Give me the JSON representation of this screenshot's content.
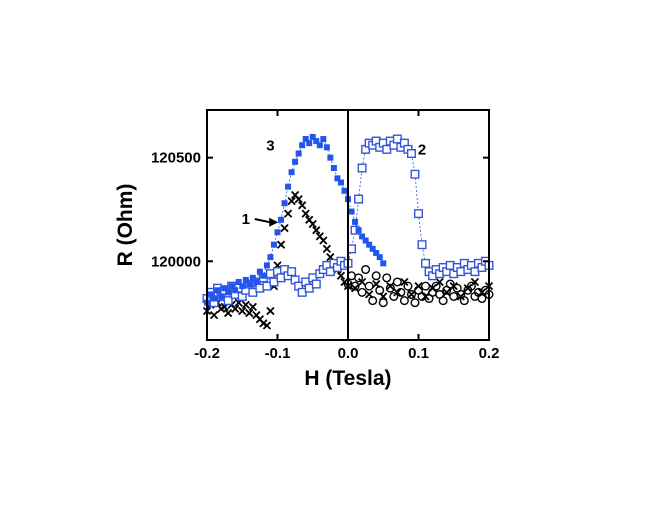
{
  "chart_data": {
    "type": "scatter",
    "xlabel": "H (Tesla)",
    "ylabel": "R (Ohm)",
    "xlim": [
      -0.2,
      0.2
    ],
    "ylim": [
      119620,
      120730
    ],
    "x_ticks": [
      {
        "value": -0.2,
        "label": "-0.2"
      },
      {
        "value": -0.1,
        "label": "-0.1"
      },
      {
        "value": 0.0,
        "label": "0.0"
      },
      {
        "value": 0.1,
        "label": "0.1"
      },
      {
        "value": 0.2,
        "label": "0.2"
      }
    ],
    "y_ticks": [
      {
        "value": 120000,
        "label": "120000"
      },
      {
        "value": 120500,
        "label": "120500"
      }
    ],
    "grid": false,
    "annotations": [
      {
        "text": "1",
        "x": -0.145,
        "y": 120180,
        "arrow_to": [
          -0.099,
          120188
        ]
      },
      {
        "text": "2",
        "x": 0.105,
        "y": 120515
      },
      {
        "text": "3",
        "x": -0.11,
        "y": 120535
      }
    ],
    "series": [
      {
        "id": "s1",
        "marker": "x",
        "color": "#000000",
        "points": [
          [
            -0.2,
            119760
          ],
          [
            -0.195,
            119790
          ],
          [
            -0.19,
            119740
          ],
          [
            -0.185,
            119800
          ],
          [
            -0.18,
            119770
          ],
          [
            -0.175,
            119780
          ],
          [
            -0.17,
            119750
          ],
          [
            -0.165,
            119790
          ],
          [
            -0.16,
            119770
          ],
          [
            -0.155,
            119800
          ],
          [
            -0.15,
            119760
          ],
          [
            -0.145,
            119790
          ],
          [
            -0.14,
            119750
          ],
          [
            -0.135,
            119780
          ],
          [
            -0.13,
            119740
          ],
          [
            -0.125,
            119720
          ],
          [
            -0.12,
            119700
          ],
          [
            -0.115,
            119690
          ],
          [
            -0.11,
            119760
          ],
          [
            -0.105,
            119880
          ],
          [
            -0.1,
            119980
          ],
          [
            -0.095,
            120080
          ],
          [
            -0.09,
            120160
          ],
          [
            -0.085,
            120230
          ],
          [
            -0.08,
            120290
          ],
          [
            -0.075,
            120320
          ],
          [
            -0.07,
            120300
          ],
          [
            -0.065,
            120270
          ],
          [
            -0.06,
            120230
          ],
          [
            -0.055,
            120200
          ],
          [
            -0.05,
            120180
          ],
          [
            -0.045,
            120150
          ],
          [
            -0.04,
            120120
          ],
          [
            -0.035,
            120100
          ],
          [
            -0.03,
            120060
          ],
          [
            -0.025,
            120020
          ],
          [
            -0.02,
            119990
          ],
          [
            -0.015,
            119960
          ],
          [
            -0.01,
            119930
          ],
          [
            -0.005,
            119900
          ],
          [
            0.0,
            119880
          ]
        ]
      },
      {
        "id": "s1-right",
        "marker": "circle-open",
        "color": "#000000",
        "points": [
          [
            0.0,
            119890
          ],
          [
            0.005,
            119930
          ],
          [
            0.01,
            119880
          ],
          [
            0.015,
            119920
          ],
          [
            0.02,
            119850
          ],
          [
            0.025,
            119960
          ],
          [
            0.03,
            119880
          ],
          [
            0.035,
            119810
          ],
          [
            0.04,
            119930
          ],
          [
            0.045,
            119860
          ],
          [
            0.05,
            119800
          ],
          [
            0.055,
            119920
          ],
          [
            0.06,
            119870
          ],
          [
            0.065,
            119830
          ],
          [
            0.07,
            119900
          ],
          [
            0.075,
            119850
          ],
          [
            0.08,
            119810
          ],
          [
            0.085,
            119880
          ],
          [
            0.09,
            119840
          ],
          [
            0.095,
            119800
          ],
          [
            0.1,
            119860
          ],
          [
            0.105,
            119830
          ],
          [
            0.11,
            119880
          ],
          [
            0.115,
            119820
          ],
          [
            0.12,
            119850
          ],
          [
            0.125,
            119880
          ],
          [
            0.13,
            119840
          ],
          [
            0.135,
            119810
          ],
          [
            0.14,
            119860
          ],
          [
            0.145,
            119890
          ],
          [
            0.15,
            119830
          ],
          [
            0.155,
            119870
          ],
          [
            0.16,
            119840
          ],
          [
            0.165,
            119810
          ],
          [
            0.17,
            119860
          ],
          [
            0.175,
            119880
          ],
          [
            0.18,
            119830
          ],
          [
            0.185,
            119850
          ],
          [
            0.19,
            119820
          ],
          [
            0.195,
            119860
          ],
          [
            0.2,
            119840
          ]
        ]
      },
      {
        "id": "s1-right-x",
        "marker": "x",
        "color": "#000000",
        "points": [
          [
            0.01,
            119870
          ],
          [
            0.02,
            119900
          ],
          [
            0.03,
            119840
          ],
          [
            0.04,
            119890
          ],
          [
            0.05,
            119830
          ],
          [
            0.06,
            119880
          ],
          [
            0.07,
            119850
          ],
          [
            0.08,
            119900
          ],
          [
            0.09,
            119840
          ],
          [
            0.1,
            119880
          ],
          [
            0.11,
            119830
          ],
          [
            0.12,
            119870
          ],
          [
            0.13,
            119900
          ],
          [
            0.14,
            119850
          ],
          [
            0.15,
            119880
          ],
          [
            0.16,
            119830
          ],
          [
            0.17,
            119870
          ],
          [
            0.18,
            119900
          ],
          [
            0.19,
            119850
          ],
          [
            0.2,
            119880
          ]
        ]
      },
      {
        "id": "s2",
        "marker": "square-open",
        "color": "#3355dd",
        "points": [
          [
            -0.2,
            119820
          ],
          [
            -0.195,
            119850
          ],
          [
            -0.19,
            119800
          ],
          [
            -0.185,
            119870
          ],
          [
            -0.18,
            119830
          ],
          [
            -0.175,
            119860
          ],
          [
            -0.17,
            119810
          ],
          [
            -0.165,
            119880
          ],
          [
            -0.16,
            119840
          ],
          [
            -0.155,
            119870
          ],
          [
            -0.15,
            119830
          ],
          [
            -0.145,
            119860
          ],
          [
            -0.14,
            119890
          ],
          [
            -0.135,
            119850
          ],
          [
            -0.13,
            119900
          ],
          [
            -0.125,
            119870
          ],
          [
            -0.12,
            119920
          ],
          [
            -0.115,
            119880
          ],
          [
            -0.11,
            119940
          ],
          [
            -0.105,
            119900
          ],
          [
            -0.1,
            119950
          ],
          [
            -0.095,
            119920
          ],
          [
            -0.09,
            119960
          ],
          [
            -0.085,
            119930
          ],
          [
            -0.08,
            119950
          ],
          [
            -0.075,
            119910
          ],
          [
            -0.07,
            119880
          ],
          [
            -0.065,
            119850
          ],
          [
            -0.06,
            119900
          ],
          [
            -0.055,
            119870
          ],
          [
            -0.05,
            119920
          ],
          [
            -0.045,
            119890
          ],
          [
            -0.04,
            119940
          ],
          [
            -0.035,
            119960
          ],
          [
            -0.03,
            119980
          ],
          [
            -0.025,
            119950
          ],
          [
            -0.02,
            119990
          ],
          [
            -0.015,
            119970
          ],
          [
            -0.01,
            120000
          ],
          [
            -0.005,
            119980
          ],
          [
            0.0,
            119990
          ],
          [
            0.005,
            120060
          ],
          [
            0.01,
            120150
          ],
          [
            0.015,
            120300
          ],
          [
            0.02,
            120450
          ],
          [
            0.025,
            120540
          ],
          [
            0.03,
            120570
          ],
          [
            0.035,
            120560
          ],
          [
            0.04,
            120580
          ],
          [
            0.045,
            120550
          ],
          [
            0.05,
            120570
          ],
          [
            0.055,
            120540
          ],
          [
            0.06,
            120580
          ],
          [
            0.065,
            120560
          ],
          [
            0.07,
            120590
          ],
          [
            0.075,
            120550
          ],
          [
            0.08,
            120570
          ],
          [
            0.085,
            120540
          ],
          [
            0.09,
            120520
          ],
          [
            0.095,
            120420
          ],
          [
            0.1,
            120230
          ],
          [
            0.105,
            120080
          ],
          [
            0.11,
            119990
          ],
          [
            0.115,
            119950
          ],
          [
            0.12,
            119930
          ],
          [
            0.125,
            119960
          ],
          [
            0.13,
            119940
          ],
          [
            0.135,
            119970
          ],
          [
            0.14,
            119950
          ],
          [
            0.145,
            119980
          ],
          [
            0.15,
            119940
          ],
          [
            0.155,
            119970
          ],
          [
            0.16,
            119950
          ],
          [
            0.165,
            119990
          ],
          [
            0.17,
            119960
          ],
          [
            0.175,
            119980
          ],
          [
            0.18,
            119950
          ],
          [
            0.185,
            119990
          ],
          [
            0.19,
            119970
          ],
          [
            0.195,
            120000
          ],
          [
            0.2,
            119980
          ]
        ]
      },
      {
        "id": "s3",
        "marker": "square-filled",
        "color": "#2255ee",
        "points": [
          [
            -0.2,
            119800
          ],
          [
            -0.195,
            119840
          ],
          [
            -0.19,
            119820
          ],
          [
            -0.185,
            119860
          ],
          [
            -0.18,
            119830
          ],
          [
            -0.175,
            119870
          ],
          [
            -0.17,
            119850
          ],
          [
            -0.165,
            119880
          ],
          [
            -0.16,
            119860
          ],
          [
            -0.155,
            119900
          ],
          [
            -0.15,
            119880
          ],
          [
            -0.145,
            119910
          ],
          [
            -0.14,
            119890
          ],
          [
            -0.135,
            119920
          ],
          [
            -0.13,
            119900
          ],
          [
            -0.125,
            119950
          ],
          [
            -0.12,
            119930
          ],
          [
            -0.115,
            119980
          ],
          [
            -0.11,
            120020
          ],
          [
            -0.105,
            120080
          ],
          [
            -0.1,
            120140
          ],
          [
            -0.095,
            120200
          ],
          [
            -0.09,
            120280
          ],
          [
            -0.085,
            120360
          ],
          [
            -0.08,
            120430
          ],
          [
            -0.075,
            120480
          ],
          [
            -0.07,
            120520
          ],
          [
            -0.065,
            120560
          ],
          [
            -0.06,
            120590
          ],
          [
            -0.055,
            120570
          ],
          [
            -0.05,
            120600
          ],
          [
            -0.045,
            120580
          ],
          [
            -0.04,
            120560
          ],
          [
            -0.035,
            120590
          ],
          [
            -0.03,
            120550
          ],
          [
            -0.025,
            120500
          ],
          [
            -0.02,
            120450
          ],
          [
            -0.015,
            120400
          ],
          [
            -0.01,
            120380
          ],
          [
            -0.005,
            120340
          ],
          [
            0.0,
            120300
          ],
          [
            0.005,
            120240
          ],
          [
            0.01,
            120190
          ],
          [
            0.015,
            120150
          ],
          [
            0.02,
            120120
          ],
          [
            0.025,
            120100
          ],
          [
            0.03,
            120080
          ],
          [
            0.035,
            120060
          ],
          [
            0.04,
            120040
          ],
          [
            0.045,
            120020
          ],
          [
            0.05,
            119990
          ]
        ]
      }
    ]
  }
}
